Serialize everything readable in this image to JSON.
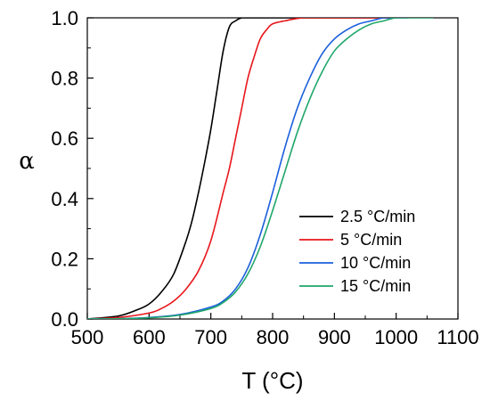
{
  "chart_data": {
    "type": "line",
    "xlabel": "T (°C)",
    "ylabel": "α",
    "xlim": [
      500,
      1100
    ],
    "ylim": [
      0,
      1.0
    ],
    "xticks": [
      500,
      600,
      700,
      800,
      900,
      1000,
      1100
    ],
    "yticks": [
      0.0,
      0.2,
      0.4,
      0.6,
      0.8,
      1.0
    ],
    "xtick_labels": [
      "500",
      "600",
      "700",
      "800",
      "900",
      "1000",
      "1100"
    ],
    "ytick_labels": [
      "0.0",
      "0.2",
      "0.4",
      "0.6",
      "0.8",
      "1.0"
    ],
    "grid": false,
    "legend_position": "lower-right",
    "series": [
      {
        "name": "2.5 °C/min",
        "color": "#000000",
        "x": [
          500,
          550,
          580,
          600,
          620,
          640,
          660,
          670,
          680,
          690,
          700,
          710,
          720,
          730,
          740,
          750,
          760,
          800,
          900,
          1000
        ],
        "y": [
          0.0,
          0.01,
          0.03,
          0.05,
          0.09,
          0.15,
          0.26,
          0.33,
          0.42,
          0.52,
          0.63,
          0.76,
          0.89,
          0.97,
          0.99,
          1.0,
          1.0,
          1.0,
          1.0,
          1.0
        ]
      },
      {
        "name": "5 °C/min",
        "color": "#e8161b",
        "x": [
          500,
          550,
          600,
          620,
          640,
          660,
          680,
          700,
          720,
          730,
          740,
          750,
          760,
          770,
          780,
          790,
          800,
          820,
          850,
          900,
          1000
        ],
        "y": [
          0.0,
          0.005,
          0.02,
          0.035,
          0.06,
          0.1,
          0.16,
          0.26,
          0.42,
          0.5,
          0.6,
          0.7,
          0.8,
          0.87,
          0.93,
          0.96,
          0.98,
          0.99,
          1.0,
          1.0,
          1.0
        ]
      },
      {
        "name": "10 °C/min",
        "color": "#1b5fdc",
        "x": [
          500,
          550,
          600,
          650,
          700,
          720,
          740,
          760,
          780,
          800,
          820,
          840,
          860,
          880,
          900,
          920,
          940,
          960,
          980,
          1000,
          1020
        ],
        "y": [
          0.0,
          0.001,
          0.005,
          0.015,
          0.04,
          0.06,
          0.1,
          0.17,
          0.28,
          0.42,
          0.57,
          0.7,
          0.8,
          0.88,
          0.93,
          0.96,
          0.98,
          0.99,
          1.0,
          1.0,
          1.0
        ]
      },
      {
        "name": "15 °C/min",
        "color": "#1fa66a",
        "x": [
          500,
          550,
          600,
          650,
          700,
          720,
          740,
          760,
          780,
          800,
          820,
          840,
          860,
          880,
          900,
          920,
          940,
          960,
          980,
          1000,
          1030,
          1060
        ],
        "y": [
          0.0,
          0.001,
          0.004,
          0.013,
          0.035,
          0.055,
          0.09,
          0.15,
          0.24,
          0.36,
          0.49,
          0.62,
          0.73,
          0.82,
          0.89,
          0.93,
          0.96,
          0.98,
          0.99,
          1.0,
          1.0,
          1.0
        ]
      }
    ]
  }
}
